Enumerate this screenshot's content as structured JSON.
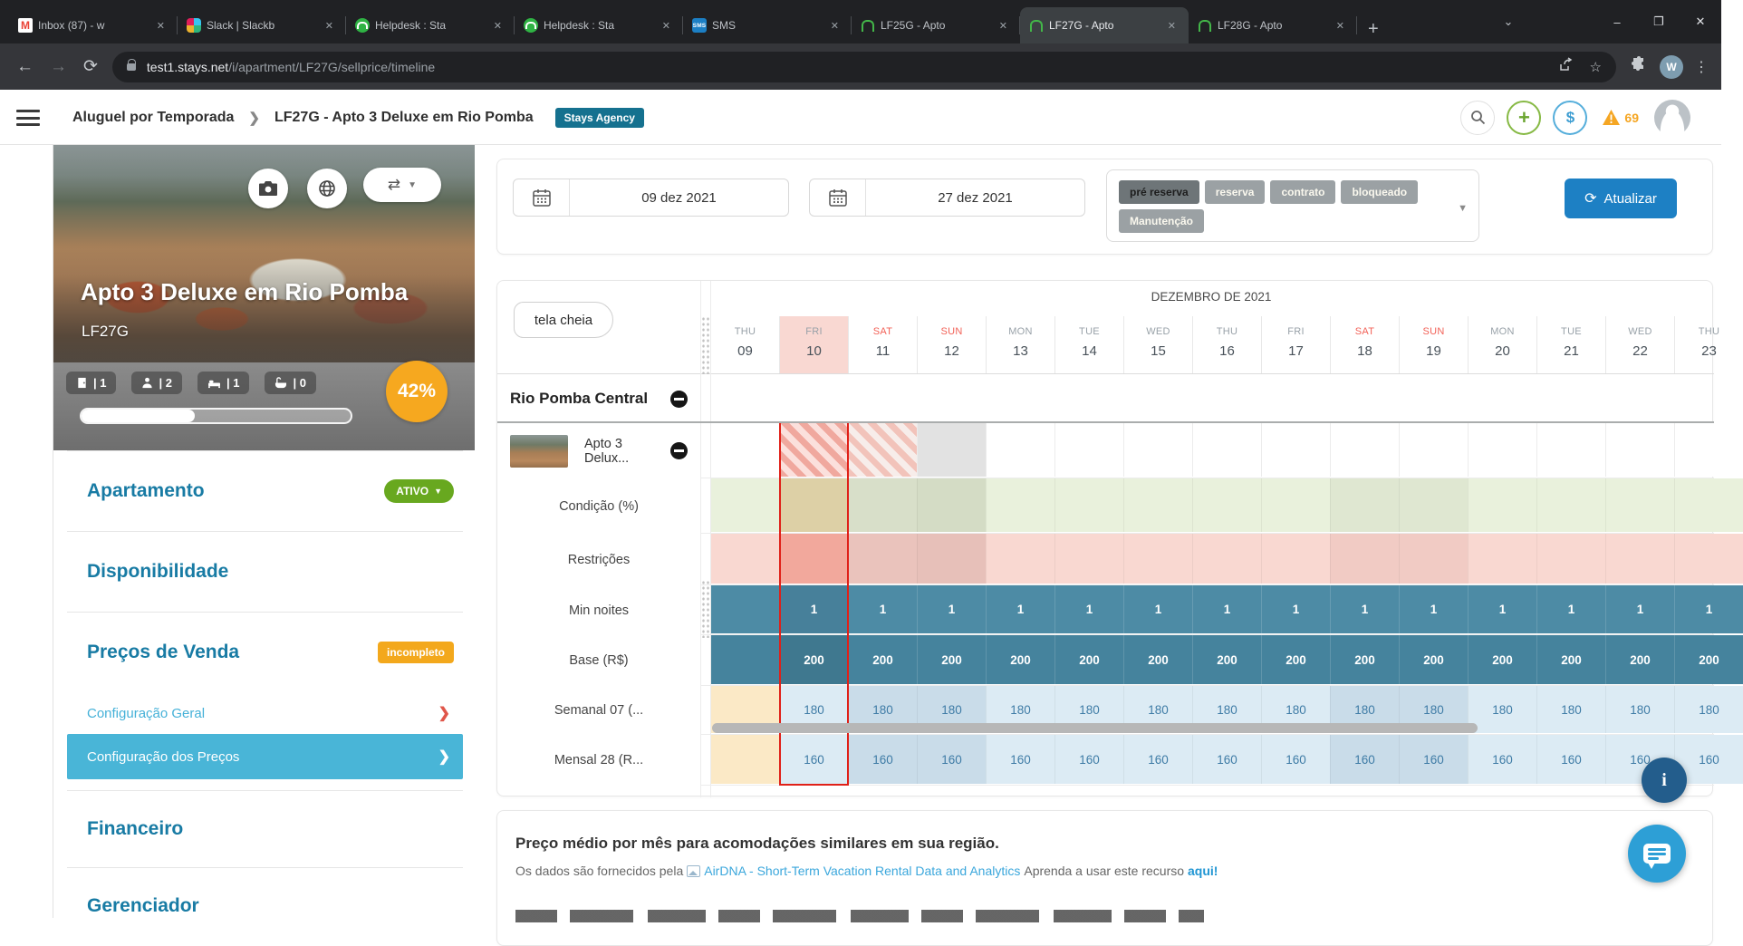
{
  "browser": {
    "tabs": [
      {
        "title": "Inbox (87) - w",
        "icon": "gmail",
        "active": false
      },
      {
        "title": "Slack | Slackb",
        "icon": "slack",
        "active": false
      },
      {
        "title": "Helpdesk : Sta",
        "icon": "helpdesk",
        "active": false
      },
      {
        "title": "Helpdesk : Sta",
        "icon": "helpdesk",
        "active": false
      },
      {
        "title": "SMS",
        "icon": "sms",
        "active": false
      },
      {
        "title": "LF25G - Apto",
        "icon": "stays",
        "active": false
      },
      {
        "title": "LF27G - Apto",
        "icon": "stays",
        "active": true
      },
      {
        "title": "LF28G - Apto",
        "icon": "stays",
        "active": false
      }
    ],
    "url_domain": "test1.stays.net",
    "url_path": "/i/apartment/LF27G/sellprice/timeline",
    "profile_initial": "W"
  },
  "header": {
    "breadcrumb_root": "Aluguel por Temporada",
    "breadcrumb_current": "LF27G - Apto 3 Deluxe em Rio Pomba",
    "badge": "Stays Agency",
    "alert_count": "69"
  },
  "property": {
    "title": "Apto 3 Deluxe em Rio Pomba",
    "code": "LF27G",
    "stats": [
      {
        "icon": "rooms-icon",
        "value": "| 1"
      },
      {
        "icon": "guests-icon",
        "value": "| 2"
      },
      {
        "icon": "beds-icon",
        "value": "| 1"
      },
      {
        "icon": "baths-icon",
        "value": "| 0"
      }
    ],
    "completeness": "42%",
    "progress_pct": 42
  },
  "menu": {
    "items": [
      {
        "label": "Apartamento",
        "type": "main",
        "badge": "ATIVO"
      },
      {
        "label": "Disponibilidade",
        "type": "main"
      },
      {
        "label": "Preços de Venda",
        "type": "main",
        "badge": "incompleto"
      },
      {
        "label": "Configuração Geral",
        "type": "sub"
      },
      {
        "label": "Configuração dos Preços",
        "type": "sub",
        "selected": true
      },
      {
        "label": "Financeiro",
        "type": "main"
      },
      {
        "label": "Gerenciador",
        "type": "main"
      }
    ]
  },
  "filters": {
    "date_from": "09 dez 2021",
    "date_to": "27 dez 2021",
    "legend": [
      {
        "label": "pré reserva",
        "selected": true
      },
      {
        "label": "reserva",
        "selected": false
      },
      {
        "label": "contrato",
        "selected": false
      },
      {
        "label": "bloqueado",
        "selected": false
      },
      {
        "label": "Manutenção",
        "selected": false
      }
    ],
    "update_label": "Atualizar"
  },
  "timeline": {
    "fullscreen_label": "tela cheia",
    "month_label": "DEZEMBRO DE 2021",
    "group_label": "Rio Pomba Central",
    "unit_label": "Apto 3 Delux...",
    "days": [
      {
        "dow": "THU",
        "date": "09",
        "weekend": false,
        "highlight": false
      },
      {
        "dow": "FRI",
        "date": "10",
        "weekend": false,
        "highlight": true
      },
      {
        "dow": "SAT",
        "date": "11",
        "weekend": true,
        "highlight": false
      },
      {
        "dow": "SUN",
        "date": "12",
        "weekend": true,
        "highlight": false
      },
      {
        "dow": "MON",
        "date": "13",
        "weekend": false,
        "highlight": false
      },
      {
        "dow": "TUE",
        "date": "14",
        "weekend": false,
        "highlight": false
      },
      {
        "dow": "WED",
        "date": "15",
        "weekend": false,
        "highlight": false
      },
      {
        "dow": "THU",
        "date": "16",
        "weekend": false,
        "highlight": false
      },
      {
        "dow": "FRI",
        "date": "17",
        "weekend": false,
        "highlight": false
      },
      {
        "dow": "SAT",
        "date": "18",
        "weekend": true,
        "highlight": false
      },
      {
        "dow": "SUN",
        "date": "19",
        "weekend": true,
        "highlight": false
      },
      {
        "dow": "MON",
        "date": "20",
        "weekend": false,
        "highlight": false
      },
      {
        "dow": "TUE",
        "date": "21",
        "weekend": false,
        "highlight": false
      },
      {
        "dow": "WED",
        "date": "22",
        "weekend": false,
        "highlight": false
      },
      {
        "dow": "THU",
        "date": "23",
        "weekend": false,
        "highlight": false
      }
    ],
    "unit_cells": {
      "10": "busy-strong",
      "11": "busy-light",
      "12": "blocked"
    },
    "rows": [
      {
        "label": "Condição (%)",
        "kind": "tint",
        "base": "#e9f1dc",
        "overrides": {
          "10": "#ddd0a6",
          "11": "#d8dfc9",
          "12": "#d4dcc5",
          "18": "#dfe7d1",
          "19": "#dfe7d1"
        }
      },
      {
        "label": "Restrições",
        "kind": "tint",
        "base": "#f9d8d1",
        "overrides": {
          "10": "#f2a89c",
          "11": "#eac3bc",
          "12": "#e7c0b9",
          "18": "#f1cbc4",
          "19": "#f1cbc4"
        }
      },
      {
        "label": "Min noites",
        "kind": "solid",
        "base": "#4d8ba5",
        "today_col": "#47809a",
        "text": "#ffffff",
        "values": [
          "",
          "1",
          "1",
          "1",
          "1",
          "1",
          "1",
          "1",
          "1",
          "1",
          "1",
          "1",
          "1",
          "1",
          "1"
        ]
      },
      {
        "label": "Base (R$)",
        "kind": "solid",
        "base": "#45839d",
        "today_col": "#3f788f",
        "text": "#ffffff",
        "values": [
          "",
          "200",
          "200",
          "200",
          "200",
          "200",
          "200",
          "200",
          "200",
          "200",
          "200",
          "200",
          "200",
          "200",
          "200"
        ]
      },
      {
        "label": "Semanal 07 (...",
        "kind": "light",
        "first": "#fbe9c6",
        "base": "#dcebf4",
        "weekend": "#c9dce9",
        "text": "#3f7ca6",
        "values": [
          "",
          "180",
          "180",
          "180",
          "180",
          "180",
          "180",
          "180",
          "180",
          "180",
          "180",
          "180",
          "180",
          "180",
          "180"
        ]
      },
      {
        "label": "Mensal 28 (R...",
        "kind": "light",
        "first": "#fbe9c6",
        "base": "#dcebf4",
        "weekend": "#c9dce9",
        "text": "#3f7ca6",
        "values": [
          "",
          "160",
          "160",
          "160",
          "160",
          "160",
          "160",
          "160",
          "160",
          "160",
          "160",
          "160",
          "160",
          "160",
          "160"
        ]
      }
    ]
  },
  "footer": {
    "title": "Preço médio por mês para acomodações similares em sua região.",
    "line_prefix": "Os dados são fornecidos pela",
    "link": "AirDNA - Short-Term Vacation Rental Data and Analytics",
    "line_mid": "Aprenda a usar este recurso",
    "link2": "aqui!"
  },
  "colors": {
    "accent_teal": "#15718f",
    "sidebar_heading": "#187ba4",
    "selected_item": "#49b5d7",
    "active_green": "#68a81f",
    "warning_orange": "#f3a81c",
    "update_blue": "#1d80c4",
    "selection_red": "#e02018"
  }
}
